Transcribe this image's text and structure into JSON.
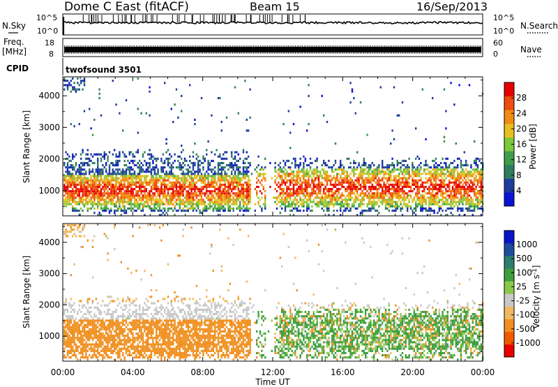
{
  "header": {
    "title": "Dome C East (fitACF)",
    "beam": "Beam 15",
    "date": "16/Sep/2013"
  },
  "top_panels": {
    "nsky_label": "N.Sky",
    "nsky_ticks": [
      "10^5",
      "10^0"
    ],
    "nsearch_label": "N.Search",
    "nsearch_ticks": [
      "10^5",
      "10^0"
    ],
    "freq_label": "Freq.",
    "freq_unit": "[MHz]",
    "freq_ticks": [
      "18",
      "8"
    ],
    "nave_label": "Nave",
    "nave_ticks": [
      "60",
      "0"
    ],
    "cpid_label": "CPID",
    "cpid_value": "twofsound 3501"
  },
  "colors": {
    "power": [
      "#0a14d2",
      "#1e3c9c",
      "#2e7d5e",
      "#3e9e4a",
      "#7cc83c",
      "#e8c020",
      "#f08c10",
      "#f04c10",
      "#e60000"
    ],
    "velocity": [
      "#e60000",
      "#f05a00",
      "#f09020",
      "#f0b860",
      "#c8c8c8",
      "#8ac84a",
      "#3c9e3c",
      "#2e7d6e",
      "#1e4c9c",
      "#0a14c8"
    ]
  },
  "chart_data": [
    {
      "type": "heatmap",
      "title": "",
      "xlabel": "",
      "ylabel": "Slant Range [km]",
      "xlim": [
        "00:00",
        "24:00"
      ],
      "ylim": [
        200,
        4600
      ],
      "yticks": [
        "1000",
        "2000",
        "3000",
        "4000"
      ],
      "colorbar_label": "Power [dB]",
      "colorbar_ticks": [
        "4",
        "8",
        "12",
        "16",
        "20",
        "24",
        "28"
      ],
      "colorbar_range": [
        0,
        32
      ],
      "echo_bands": [
        {
          "time_start_h": 0.0,
          "time_end_h": 10.7,
          "range_core_km": [
            600,
            1600
          ],
          "range_extent_km": [
            400,
            2600
          ],
          "peak_power_db": 30
        },
        {
          "time_start_h": 12.3,
          "time_end_h": 24.0,
          "range_core_km": [
            600,
            1700
          ],
          "range_extent_km": [
            400,
            2200
          ],
          "peak_power_db": 30
        }
      ]
    },
    {
      "type": "heatmap",
      "title": "",
      "xlabel": "Time UT",
      "ylabel": "Slant Range [km]",
      "xlim": [
        "00:00",
        "24:00"
      ],
      "ylim": [
        200,
        4600
      ],
      "xticks": [
        "00:00",
        "04:00",
        "08:00",
        "12:00",
        "16:00",
        "20:00",
        "00:00"
      ],
      "yticks": [
        "1000",
        "2000",
        "3000",
        "4000"
      ],
      "colorbar_label": "Velocity [m s",
      "colorbar_label_exponent": "-1",
      "colorbar_label_close": "]",
      "colorbar_ticks": [
        "1000",
        "500",
        "100",
        "25",
        "-25",
        "-100",
        "-500",
        "-1000"
      ],
      "echo_bands": [
        {
          "time_start_h": 0.0,
          "time_end_h": 10.7,
          "range_core_km": [
            500,
            1600
          ],
          "dominant_velocity_ms": -300,
          "upper_band_velocity_ms": 0
        },
        {
          "time_start_h": 12.3,
          "time_end_h": 24.0,
          "range_core_km": [
            500,
            1900
          ],
          "dominant_velocity_ms": 200,
          "upper_band_velocity_ms": 0
        }
      ]
    }
  ]
}
